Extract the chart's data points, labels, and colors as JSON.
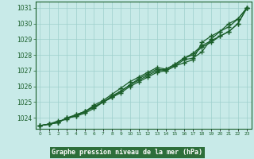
{
  "hours": [
    0,
    1,
    2,
    3,
    4,
    5,
    6,
    7,
    8,
    9,
    10,
    11,
    12,
    13,
    14,
    15,
    16,
    17,
    18,
    19,
    20,
    21,
    22,
    23
  ],
  "line1": [
    1023.5,
    1023.6,
    1023.7,
    1024.0,
    1024.1,
    1024.4,
    1024.7,
    1025.0,
    1025.3,
    1025.6,
    1026.0,
    1026.3,
    1026.6,
    1026.9,
    1027.0,
    1027.3,
    1027.7,
    1027.8,
    1028.2,
    1029.0,
    1029.5,
    1030.0,
    1030.3,
    1031.0
  ],
  "line2": [
    1023.5,
    1023.6,
    1023.7,
    1024.0,
    1024.1,
    1024.3,
    1024.6,
    1025.0,
    1025.3,
    1025.7,
    1026.1,
    1026.4,
    1026.7,
    1027.0,
    1027.1,
    1027.4,
    1027.8,
    1028.1,
    1028.6,
    1028.9,
    1029.2,
    1029.5,
    1030.0,
    1031.0
  ],
  "line3": [
    1023.5,
    1023.6,
    1023.7,
    1024.0,
    1024.2,
    1024.4,
    1024.7,
    1025.0,
    1025.4,
    1025.7,
    1026.1,
    1026.5,
    1026.8,
    1027.1,
    1027.0,
    1027.3,
    1027.5,
    1027.7,
    1028.8,
    1029.2,
    1029.5,
    1029.8,
    1030.3,
    1031.0
  ],
  "line4": [
    1023.5,
    1023.6,
    1023.8,
    1023.9,
    1024.2,
    1024.4,
    1024.8,
    1025.1,
    1025.5,
    1025.9,
    1026.3,
    1026.6,
    1026.9,
    1027.2,
    1027.1,
    1027.4,
    1027.8,
    1028.0,
    1028.5,
    1028.8,
    1029.2,
    1029.5,
    1030.0,
    1031.0
  ],
  "ylim_min": 1023.3,
  "ylim_max": 1031.4,
  "yticks": [
    1024,
    1025,
    1026,
    1027,
    1028,
    1029,
    1030,
    1031
  ],
  "xlabel": "Graphe pression niveau de la mer (hPa)",
  "bg_color": "#c8eae8",
  "line_color": "#1a5e2a",
  "grid_color": "#9ecfcc",
  "xlabel_bg": "#2d6e3a",
  "xlabel_fg": "#ffffff"
}
